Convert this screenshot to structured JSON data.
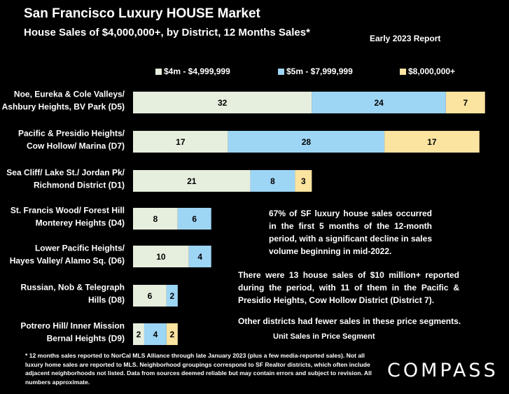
{
  "header": {
    "title": "San Francisco Luxury HOUSE Market",
    "subtitle": "House Sales of $4,000,000+, by District, 12 Months Sales*",
    "report_label": "Early 2023 Report"
  },
  "chart_data": {
    "type": "bar",
    "orientation": "horizontal",
    "stacked": true,
    "categories": [
      [
        "Noe, Eureka & Cole Valleys/",
        "Ashbury Heights, BV Park (D5)"
      ],
      [
        "Pacific & Presidio Heights/",
        "Cow Hollow/ Marina (D7)"
      ],
      [
        "Sea Cliff/ Lake St./ Jordan Pk/",
        "Richmond District (D1)"
      ],
      [
        "St. Francis Wood/ Forest Hill",
        "Monterey Heights (D4)"
      ],
      [
        "Lower Pacific Heights/",
        "Hayes Valley/ Alamo Sq. (D6)"
      ],
      [
        "Russian, Nob & Telegraph",
        "Hills (D8)"
      ],
      [
        "Potrero Hill/ Inner Mission",
        "Bernal Heights (D9)"
      ]
    ],
    "series": [
      {
        "name": "$4m - $4,999,999",
        "color": "#e6eedd",
        "values": [
          32,
          17,
          21,
          8,
          10,
          6,
          2
        ]
      },
      {
        "name": "$5m - $7,999,999",
        "color": "#9dd5f5",
        "values": [
          24,
          28,
          8,
          6,
          4,
          2,
          4
        ]
      },
      {
        "name": "$8,000,000+",
        "color": "#fbe3a0",
        "values": [
          7,
          17,
          3,
          0,
          0,
          0,
          2
        ]
      }
    ],
    "xlabel": "Unit Sales in Price Segment",
    "xlim": [
      0,
      64
    ],
    "legend_position": "top",
    "grid": false
  },
  "notes": {
    "note1": "67% of SF luxury house sales occurred in the first 5 months of the 12-month period, with a significant decline in sales volume beginning in mid-2022.",
    "note2": "There were 13 house sales of $10 million+ reported during the period, with 11 of them in the Pacific & Presidio Heights, Cow Hollow District (District 7).",
    "note3": "Other districts had fewer sales in these price segments."
  },
  "footnote": "* 12 months sales reported to NorCal MLS Alliance through late January 2023 (plus a few media-reported sales). Not all luxury home sales are reported to MLS. Neighborhood groupings correspond to SF Realtor districts, which often include adjacent neighborhoods not listed. Data from sources deemed reliable but may contain errors and subject to revision. All numbers approximate.",
  "logo": "COMPASS"
}
